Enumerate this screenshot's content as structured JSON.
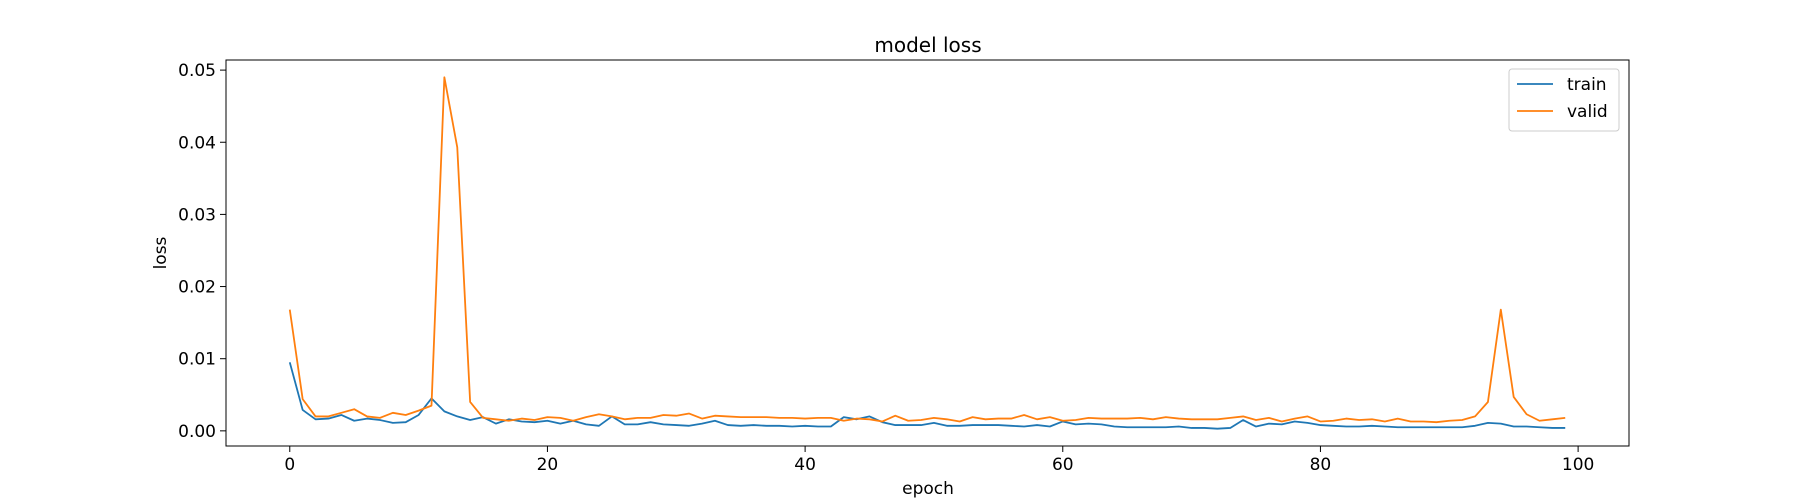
{
  "chart_data": {
    "type": "line",
    "title": "model loss",
    "xlabel": "epoch",
    "ylabel": "loss",
    "xlim": [
      -4.95,
      103.95
    ],
    "ylim": [
      -0.0021,
      0.0514
    ],
    "xticks": [
      0,
      20,
      40,
      60,
      80,
      100
    ],
    "yticks": [
      0.0,
      0.01,
      0.02,
      0.03,
      0.04,
      0.05
    ],
    "xtick_labels": [
      "0",
      "20",
      "40",
      "60",
      "80",
      "100"
    ],
    "ytick_labels": [
      "0.00",
      "0.01",
      "0.02",
      "0.03",
      "0.04",
      "0.05"
    ],
    "grid": false,
    "legend_position": "top-right",
    "x": [
      0,
      1,
      2,
      3,
      4,
      5,
      6,
      7,
      8,
      9,
      10,
      11,
      12,
      13,
      14,
      15,
      16,
      17,
      18,
      19,
      20,
      21,
      22,
      23,
      24,
      25,
      26,
      27,
      28,
      29,
      30,
      31,
      32,
      33,
      34,
      35,
      36,
      37,
      38,
      39,
      40,
      41,
      42,
      43,
      44,
      45,
      46,
      47,
      48,
      49,
      50,
      51,
      52,
      53,
      54,
      55,
      56,
      57,
      58,
      59,
      60,
      61,
      62,
      63,
      64,
      65,
      66,
      67,
      68,
      69,
      70,
      71,
      72,
      73,
      74,
      75,
      76,
      77,
      78,
      79,
      80,
      81,
      82,
      83,
      84,
      85,
      86,
      87,
      88,
      89,
      90,
      91,
      92,
      93,
      94,
      95,
      96,
      97,
      98,
      99
    ],
    "series": [
      {
        "name": "train",
        "color": "#1f77b4",
        "values": [
          0.0095,
          0.0029,
          0.0016,
          0.0017,
          0.0022,
          0.0014,
          0.0017,
          0.0015,
          0.0011,
          0.0012,
          0.0022,
          0.0045,
          0.0027,
          0.002,
          0.0015,
          0.0019,
          0.001,
          0.0016,
          0.0013,
          0.0012,
          0.0014,
          0.001,
          0.0014,
          0.0009,
          0.0007,
          0.002,
          0.0009,
          0.0009,
          0.0012,
          0.0009,
          0.0008,
          0.0007,
          0.001,
          0.0014,
          0.0008,
          0.0007,
          0.0008,
          0.0007,
          0.0007,
          0.0006,
          0.0007,
          0.0006,
          0.0006,
          0.0019,
          0.0016,
          0.002,
          0.0012,
          0.0008,
          0.0008,
          0.0008,
          0.0011,
          0.0007,
          0.0007,
          0.0008,
          0.0008,
          0.0008,
          0.0007,
          0.0006,
          0.0008,
          0.0006,
          0.0013,
          0.0009,
          0.001,
          0.0009,
          0.0006,
          0.0005,
          0.0005,
          0.0005,
          0.0005,
          0.0006,
          0.0004,
          0.0004,
          0.0003,
          0.0004,
          0.0015,
          0.0006,
          0.001,
          0.0009,
          0.0013,
          0.0011,
          0.0008,
          0.0007,
          0.0006,
          0.0006,
          0.0007,
          0.0006,
          0.0005,
          0.0005,
          0.0005,
          0.0005,
          0.0005,
          0.0005,
          0.0007,
          0.0011,
          0.001,
          0.0006,
          0.0006,
          0.0005,
          0.0004,
          0.0004
        ]
      },
      {
        "name": "valid",
        "color": "#ff7f0e",
        "values": [
          0.0168,
          0.0044,
          0.002,
          0.002,
          0.0025,
          0.003,
          0.002,
          0.0018,
          0.0025,
          0.0022,
          0.0028,
          0.0035,
          0.049,
          0.0393,
          0.004,
          0.0018,
          0.0016,
          0.0014,
          0.0017,
          0.0015,
          0.0019,
          0.0018,
          0.0014,
          0.0019,
          0.0023,
          0.002,
          0.0016,
          0.0018,
          0.0018,
          0.0022,
          0.0021,
          0.0024,
          0.0017,
          0.0021,
          0.002,
          0.0019,
          0.0019,
          0.0019,
          0.0018,
          0.0018,
          0.0017,
          0.0018,
          0.0018,
          0.0014,
          0.0017,
          0.0016,
          0.0013,
          0.0021,
          0.0014,
          0.0015,
          0.0018,
          0.0016,
          0.0013,
          0.0019,
          0.0016,
          0.0017,
          0.0017,
          0.0022,
          0.0016,
          0.0019,
          0.0014,
          0.0015,
          0.0018,
          0.0017,
          0.0017,
          0.0017,
          0.0018,
          0.0016,
          0.0019,
          0.0017,
          0.0016,
          0.0016,
          0.0016,
          0.0018,
          0.002,
          0.0015,
          0.0018,
          0.0013,
          0.0017,
          0.002,
          0.0013,
          0.0014,
          0.0017,
          0.0015,
          0.0016,
          0.0013,
          0.0017,
          0.0013,
          0.0013,
          0.0012,
          0.0014,
          0.0015,
          0.002,
          0.004,
          0.0168,
          0.0047,
          0.0023,
          0.0014,
          0.0016,
          0.0018
        ]
      }
    ]
  }
}
